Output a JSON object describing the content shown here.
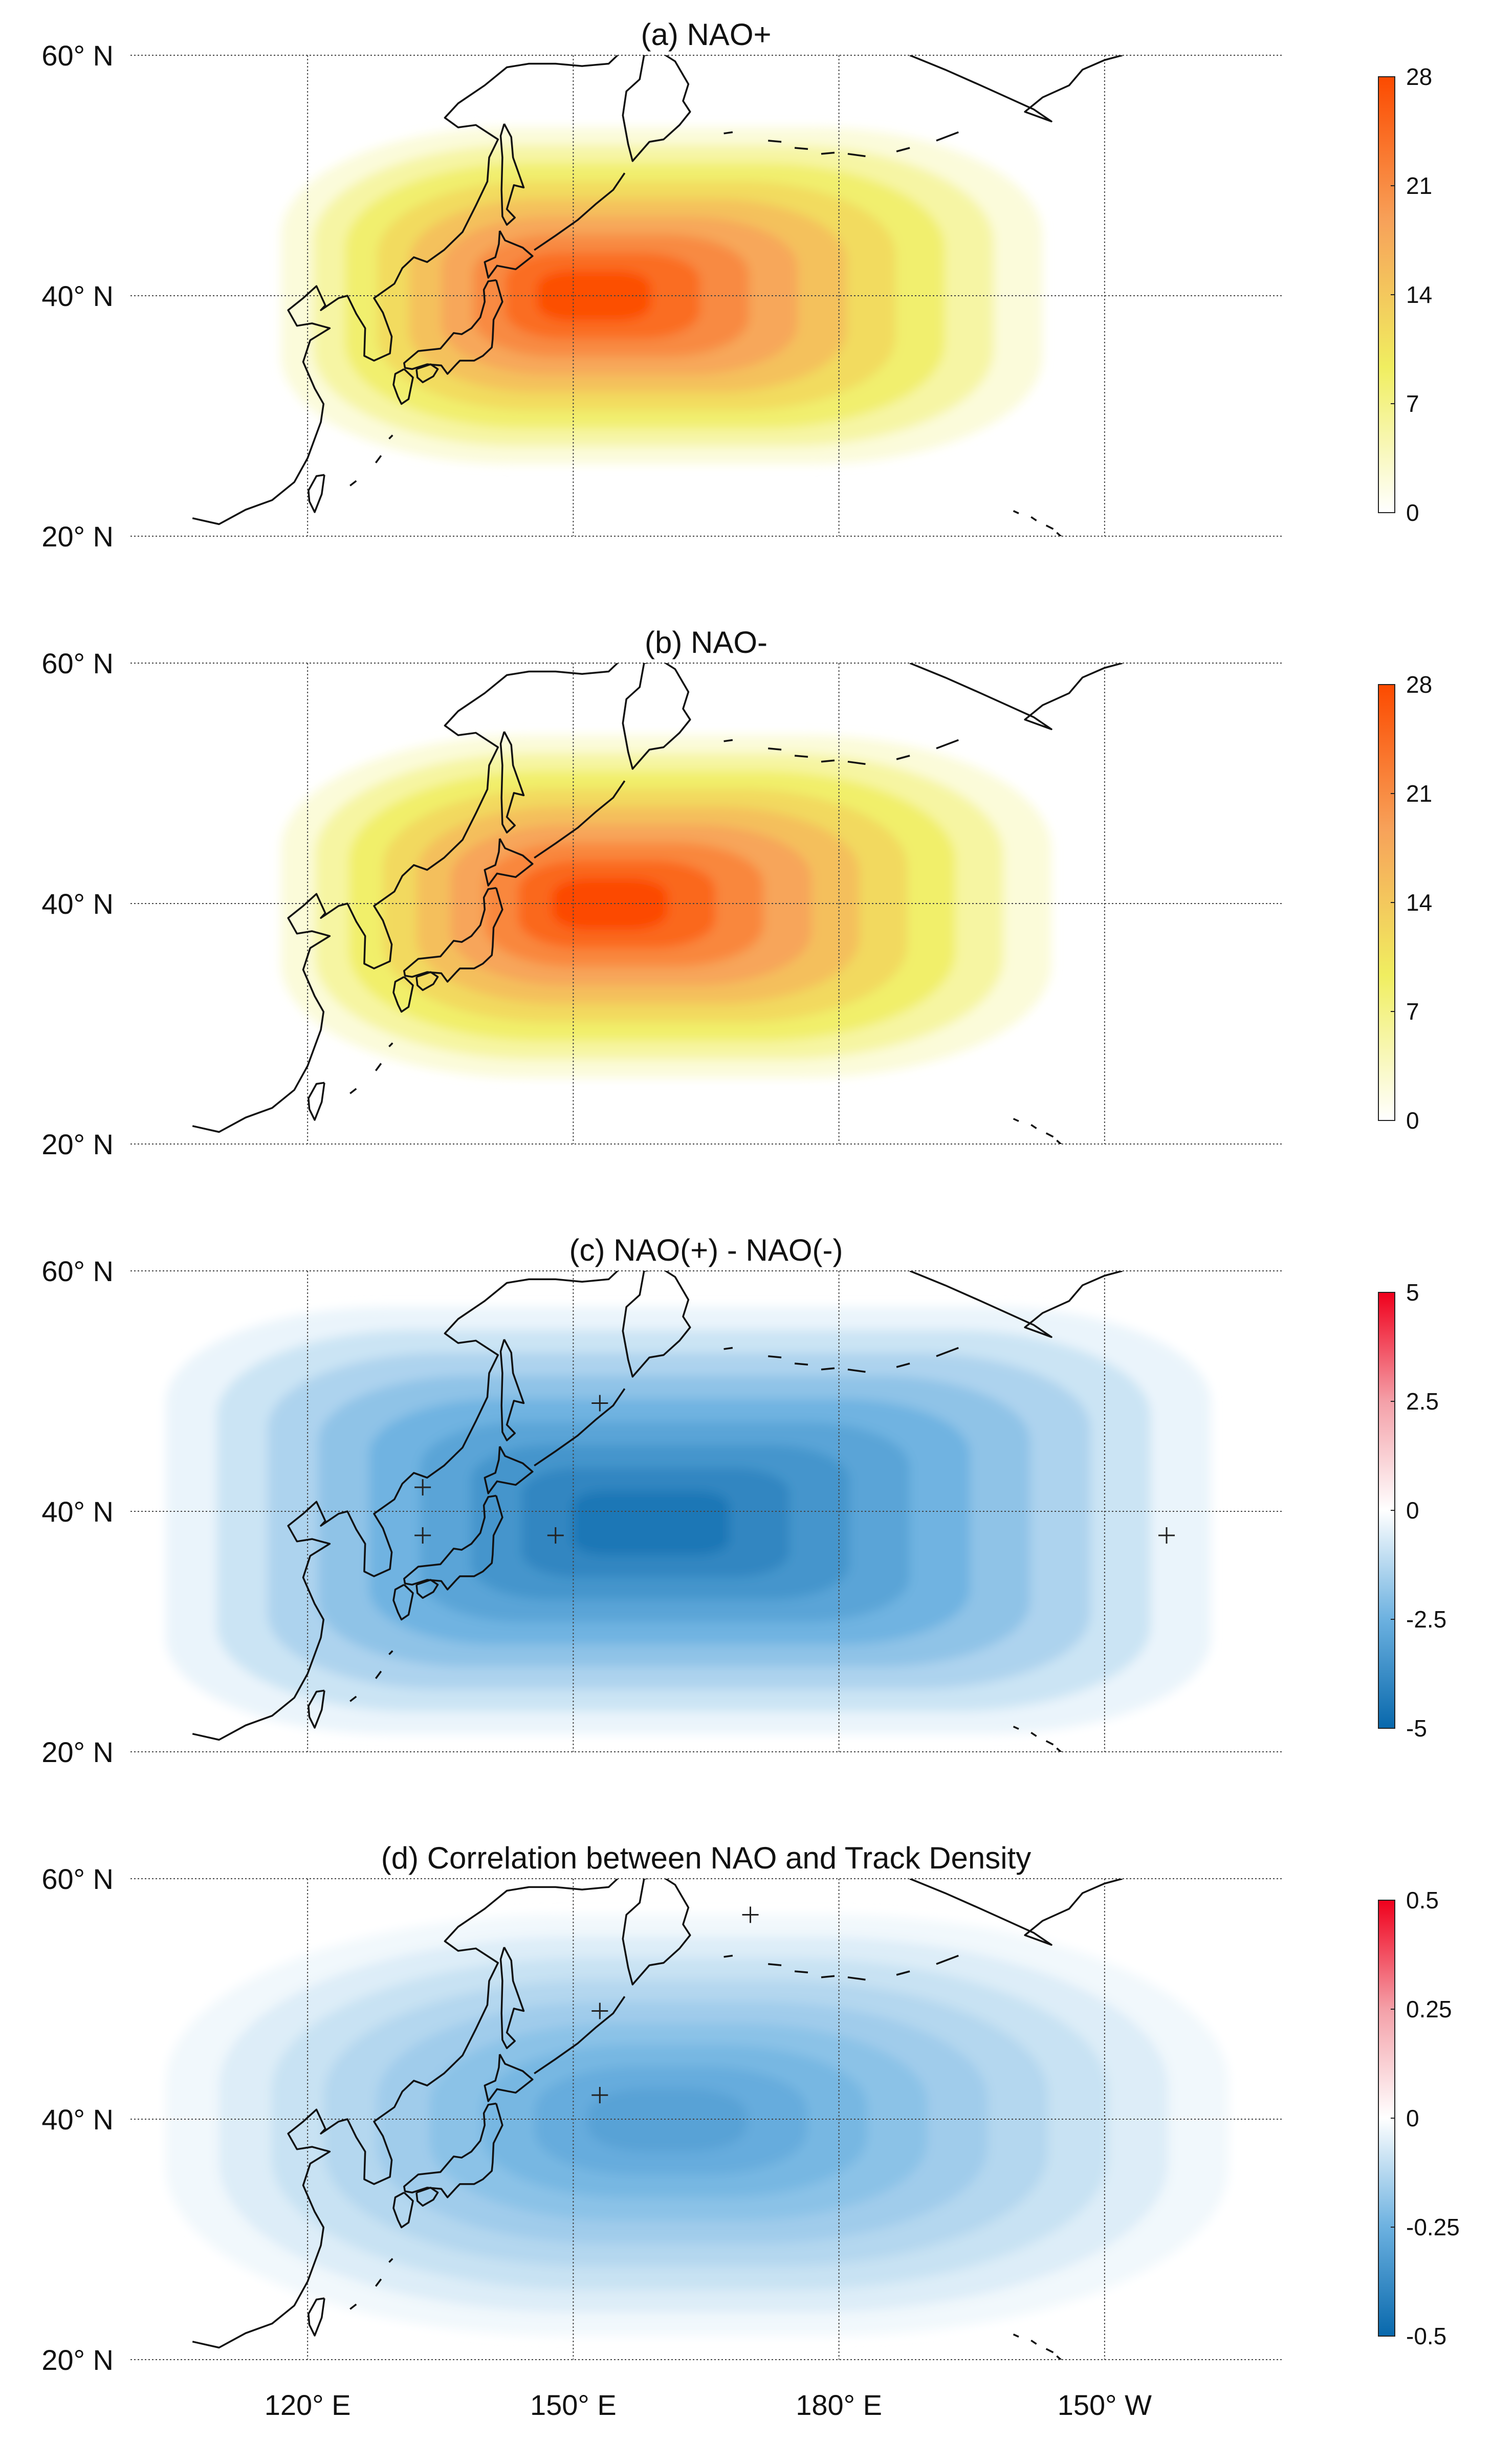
{
  "figure": {
    "x_tick_labels": [
      {
        "lon": 120,
        "label": "120° E"
      },
      {
        "lon": 150,
        "label": "150° E"
      },
      {
        "lon": 180,
        "label": "180° E"
      },
      {
        "lon": 210,
        "label": "150° W"
      }
    ],
    "y_tick_labels": [
      {
        "lat": 60,
        "label": "60° N"
      },
      {
        "lat": 40,
        "label": "40° N"
      },
      {
        "lat": 20,
        "label": "20° N"
      }
    ]
  },
  "chart_data": [
    {
      "id": "a",
      "type": "heatmap",
      "title": "(a) NAO+",
      "xlabel": "",
      "ylabel": "",
      "xlim": [
        100,
        230
      ],
      "ylim": [
        20,
        60
      ],
      "grid": true,
      "colorbar": {
        "min": 0,
        "max": 28,
        "ticks": [
          0,
          7,
          14,
          21,
          28
        ],
        "tick_labels": [
          "0",
          "7",
          "14",
          "21",
          "28"
        ],
        "colors": [
          "#ffffff",
          "#f0ee60",
          "#f7a25a",
          "#fc4a00"
        ]
      },
      "field": {
        "center_lon": 151,
        "center_lat": 40,
        "sigma_lon": 26,
        "sigma_lat": 9,
        "peak": 27.5,
        "extent_lon": [
          117,
          203
        ],
        "extent_lat": [
          26,
          54
        ]
      },
      "markers": []
    },
    {
      "id": "b",
      "type": "heatmap",
      "title": "(b) NAO-",
      "xlabel": "",
      "ylabel": "",
      "xlim": [
        100,
        230
      ],
      "ylim": [
        20,
        60
      ],
      "grid": true,
      "colorbar": {
        "min": 0,
        "max": 28,
        "ticks": [
          0,
          7,
          14,
          21,
          28
        ],
        "tick_labels": [
          "0",
          "7",
          "14",
          "21",
          "28"
        ],
        "colors": [
          "#ffffff",
          "#f0ee60",
          "#f7a25a",
          "#fc4a00"
        ]
      },
      "field": {
        "center_lon": 153,
        "center_lat": 40,
        "sigma_lon": 28,
        "sigma_lat": 9.5,
        "peak": 28,
        "extent_lon": [
          117,
          204
        ],
        "extent_lat": [
          25.5,
          54
        ]
      },
      "markers": []
    },
    {
      "id": "c",
      "type": "heatmap",
      "title": "(c) NAO(+) - NAO(-)",
      "xlabel": "",
      "ylabel": "",
      "xlim": [
        100,
        230
      ],
      "ylim": [
        20,
        60
      ],
      "grid": true,
      "colorbar": {
        "min": -5,
        "max": 5,
        "ticks": [
          -5,
          -2.5,
          0,
          2.5,
          5
        ],
        "tick_labels": [
          "-5",
          "-2.5",
          "0",
          "2.5",
          "5"
        ],
        "colors": [
          "#0868ac",
          "#6cb1e0",
          "#ffffff",
          "#f4a0a8",
          "#f0001c"
        ]
      },
      "field": {
        "center_lon": 158,
        "center_lat": 39,
        "sigma_lon": 25,
        "sigma_lat": 8,
        "peak": -4.5,
        "extent_lon": [
          104,
          222
        ],
        "extent_lat": [
          21.5,
          57
        ]
      },
      "markers": [
        {
          "lon": 133,
          "lat": 42
        },
        {
          "lon": 153,
          "lat": 49
        },
        {
          "lon": 133,
          "lat": 38
        },
        {
          "lon": 148,
          "lat": 38
        },
        {
          "lon": 217,
          "lat": 38
        }
      ]
    },
    {
      "id": "d",
      "type": "heatmap",
      "title": "(d) Correlation between NAO and Track Density",
      "xlabel": "",
      "ylabel": "",
      "xlim": [
        100,
        230
      ],
      "ylim": [
        20,
        60
      ],
      "grid": true,
      "colorbar": {
        "min": -0.5,
        "max": 0.5,
        "ticks": [
          -0.5,
          -0.25,
          0,
          0.25,
          0.5
        ],
        "tick_labels": [
          "-0.5",
          "-0.25",
          "0",
          "0.25",
          "0.5"
        ],
        "colors": [
          "#0868ac",
          "#6cb1e0",
          "#ffffff",
          "#f4a0a8",
          "#f0001c"
        ]
      },
      "field": {
        "center_lon": 160,
        "center_lat": 40,
        "sigma_lon": 45,
        "sigma_lat": 14,
        "peak": -0.3,
        "extent_lon": [
          104,
          224
        ],
        "extent_lat": [
          22,
          57
        ]
      },
      "markers": [
        {
          "lon": 170,
          "lat": 57
        },
        {
          "lon": 153,
          "lat": 49
        },
        {
          "lon": 153,
          "lat": 42
        }
      ]
    }
  ]
}
